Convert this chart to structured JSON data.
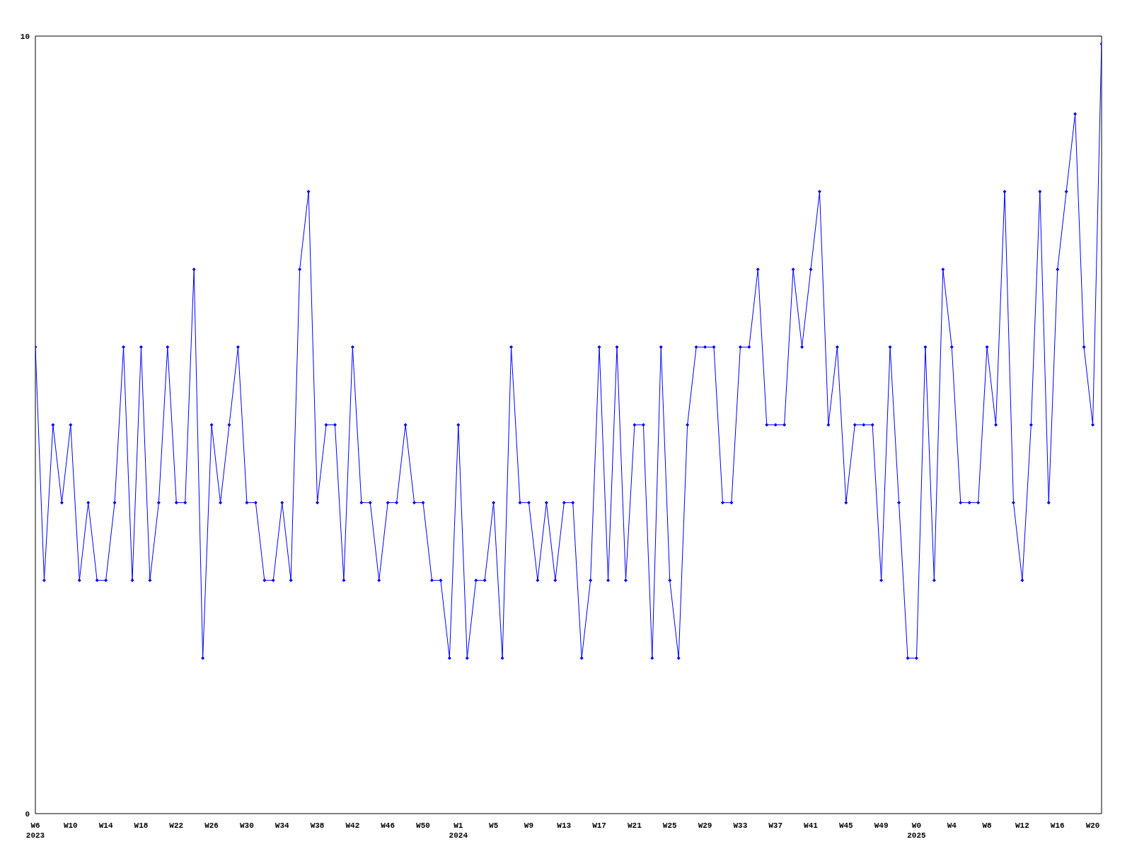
{
  "chart_data": {
    "type": "line",
    "categories": [
      "W6\n2023",
      null,
      null,
      null,
      "W10",
      null,
      null,
      null,
      "W14",
      null,
      null,
      null,
      "W18",
      null,
      null,
      null,
      "W22",
      null,
      null,
      null,
      "W26",
      null,
      null,
      null,
      "W30",
      null,
      null,
      null,
      "W34",
      null,
      null,
      null,
      "W38",
      null,
      null,
      null,
      "W42",
      null,
      null,
      null,
      "W46",
      null,
      null,
      null,
      "W50",
      null,
      null,
      null,
      "W1\n2024",
      null,
      null,
      null,
      "W5",
      null,
      null,
      null,
      "W9",
      null,
      null,
      null,
      "W13",
      null,
      null,
      null,
      "W17",
      null,
      null,
      null,
      "W21",
      null,
      null,
      null,
      "W25",
      null,
      null,
      null,
      "W29",
      null,
      null,
      null,
      "W33",
      null,
      null,
      null,
      "W37",
      null,
      null,
      null,
      "W41",
      null,
      null,
      null,
      "W45",
      null,
      null,
      null,
      "W49",
      null,
      null,
      null,
      "W0\n2025",
      null,
      null,
      null,
      "W4",
      null,
      null,
      null,
      "W8",
      null,
      null,
      null,
      "W12",
      null,
      null,
      null,
      "W16",
      null,
      null,
      null,
      "W20",
      null
    ],
    "series": [
      {
        "color": "#0000ff",
        "values": [
          6,
          3,
          5,
          4,
          5,
          3,
          4,
          3,
          3,
          4,
          6,
          3,
          6,
          3,
          4,
          6,
          4,
          4,
          7,
          2,
          5,
          4,
          5,
          6,
          4,
          4,
          3,
          3,
          4,
          3,
          7,
          8,
          4,
          5,
          5,
          3,
          6,
          4,
          4,
          3,
          4,
          4,
          5,
          4,
          4,
          3,
          3,
          2,
          5,
          2,
          3,
          3,
          4,
          2,
          6,
          4,
          4,
          3,
          4,
          3,
          4,
          4,
          2,
          3,
          6,
          3,
          6,
          3,
          5,
          5,
          2,
          6,
          3,
          2,
          5,
          6,
          6,
          6,
          4,
          4,
          6,
          6,
          7,
          5,
          5,
          5,
          7,
          6,
          7,
          8,
          5,
          6,
          4,
          5,
          5,
          5,
          3,
          6,
          4,
          2,
          2,
          6,
          3,
          7,
          6,
          4,
          4,
          4,
          6,
          5,
          8,
          4,
          3,
          5,
          8,
          4,
          7,
          8,
          9,
          6,
          5,
          9.9
        ]
      }
    ],
    "ylim": [
      0,
      10
    ],
    "yticks": [
      0,
      10
    ],
    "grid": false,
    "legend": false,
    "marker": "diamond",
    "line_style": "solid"
  }
}
